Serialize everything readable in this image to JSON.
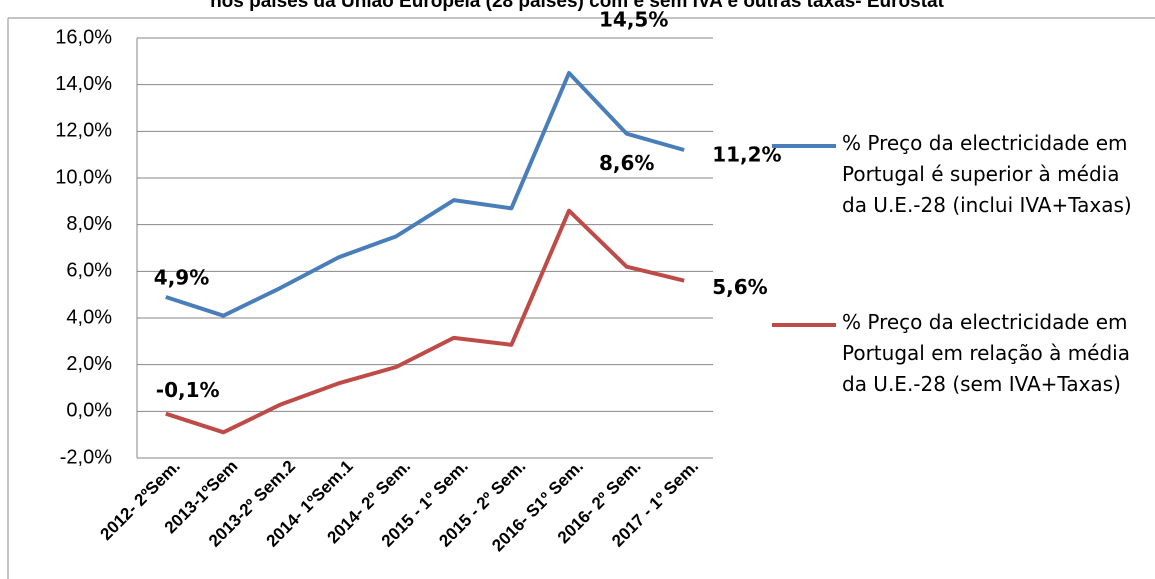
{
  "chart_data": {
    "type": "line",
    "title": "nos países da União Europeia (28 países) com e sem IVA e outras taxas- Eurostat",
    "categories": [
      "2012- 2ºSem.",
      "2013-1ºSem",
      "2013-2º Sem.2",
      "2014- 1ºSem.1",
      "2014- 2º Sem.",
      "2015 - 1º Sem.",
      "2015 - 2º Sem.",
      "2016- S1º Sem.",
      "2016- 2º Sem.",
      "2017 - 1º Sem."
    ],
    "series": [
      {
        "name": "% Preço da electricidade em Portugal é superior à média da U.E.-28 (inclui IVA+Taxas)",
        "color": "#4a7ebb",
        "values": [
          4.9,
          4.1,
          5.3,
          6.6,
          7.5,
          9.05,
          8.7,
          14.5,
          11.9,
          11.2
        ],
        "value_labels": [
          "4,9%",
          null,
          null,
          null,
          null,
          null,
          null,
          "14,5%",
          null,
          "11,2%"
        ]
      },
      {
        "name": "% Preço da electricidade em Portugal em relação à média da U.E.-28 (sem IVA+Taxas)",
        "color": "#be4b48",
        "values": [
          -0.1,
          -0.9,
          0.3,
          1.2,
          1.9,
          3.15,
          2.85,
          8.6,
          6.2,
          5.6
        ],
        "value_labels": [
          "-0,1%",
          null,
          null,
          null,
          null,
          null,
          null,
          "8,6%",
          null,
          "5,6%"
        ]
      }
    ],
    "ylim": [
      -2,
      16
    ],
    "yticks": [
      {
        "value": -2,
        "label": "-2,0%"
      },
      {
        "value": 0,
        "label": "0,0%"
      },
      {
        "value": 2,
        "label": "2,0%"
      },
      {
        "value": 4,
        "label": "4,0%"
      },
      {
        "value": 6,
        "label": "6,0%"
      },
      {
        "value": 8,
        "label": "8,0%"
      },
      {
        "value": 10,
        "label": "10,0%"
      },
      {
        "value": 12,
        "label": "12,0%"
      },
      {
        "value": 14,
        "label": "14,0%"
      },
      {
        "value": 16,
        "label": "16,0%"
      }
    ],
    "grid": true,
    "legend": "right"
  }
}
